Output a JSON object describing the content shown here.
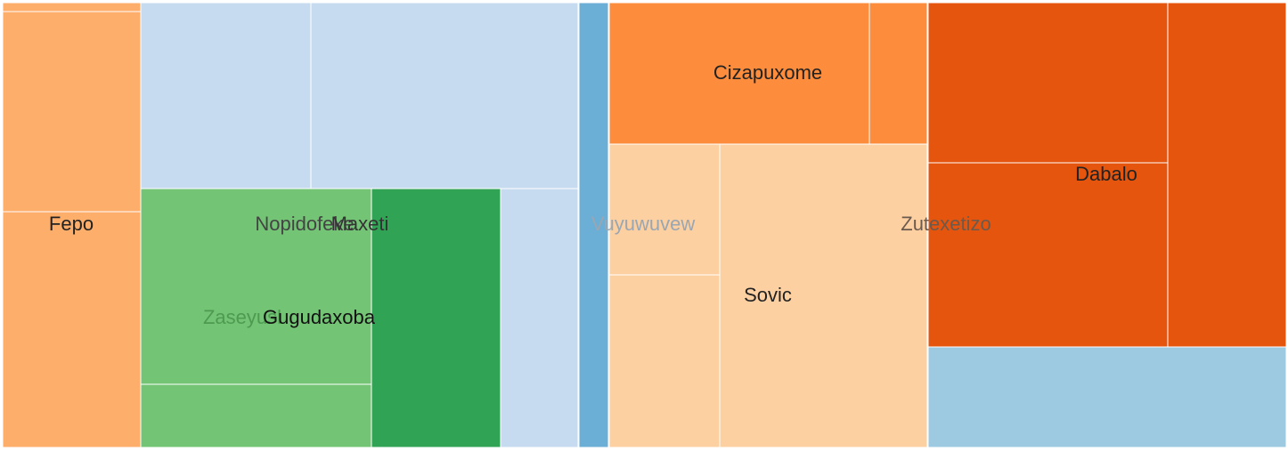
{
  "chart_data": {
    "type": "treemap",
    "colors": {
      "blue_light": "#c6dbef",
      "blue_mid": "#6baed6",
      "blue_pale": "#9ecae1",
      "green_light": "#74c476",
      "green_dark": "#31a354",
      "orange_light": "#fdae6b",
      "orange_mid": "#fd8d3c",
      "orange_dark": "#e6550d",
      "orange_pale": "#fdd0a2"
    },
    "tiles": [
      {
        "color": "orange_light"
      },
      {
        "color": "orange_light"
      },
      {
        "color": "orange_light"
      },
      {
        "color": "blue_light"
      },
      {
        "color": "blue_light"
      },
      {
        "color": "green_light"
      },
      {
        "color": "green_light"
      },
      {
        "color": "green_dark"
      },
      {
        "color": "blue_light"
      },
      {
        "color": "blue_mid"
      },
      {
        "color": "orange_mid"
      },
      {
        "color": "orange_mid"
      },
      {
        "color": "orange_pale"
      },
      {
        "color": "orange_pale"
      },
      {
        "color": "orange_pale"
      },
      {
        "color": "orange_dark"
      },
      {
        "color": "orange_dark"
      },
      {
        "color": "orange_dark"
      },
      {
        "color": "blue_pale"
      }
    ],
    "labels": [
      {
        "text": "Fepo",
        "color": "#222222"
      },
      {
        "text": "Nopidofeke",
        "color": "#444444"
      },
      {
        "text": "Maxeti",
        "color": "#333333"
      },
      {
        "text": "Zaseyusl",
        "color": "#4d9a50"
      },
      {
        "text": "Gugudaxoba",
        "color": "#111111"
      },
      {
        "text": "Vuyuwuvew",
        "color": "#9aa6b2"
      },
      {
        "text": "Cizapuxome",
        "color": "#222222"
      },
      {
        "text": "Sovic",
        "color": "#222222"
      },
      {
        "text": "Zutexetizo",
        "color": "#6b5a4e"
      },
      {
        "text": "Dabalo",
        "color": "#222222"
      }
    ]
  }
}
